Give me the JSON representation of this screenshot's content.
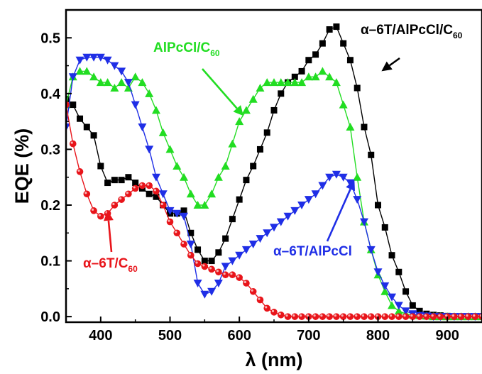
{
  "chart_data": {
    "type": "scatter",
    "xlabel": "λ (nm)",
    "ylabel": "EQE (%)",
    "xlim": [
      350,
      950
    ],
    "ylim": [
      -0.01,
      0.55
    ],
    "x_ticks": [
      400,
      500,
      600,
      700,
      800,
      900
    ],
    "y_ticks": [
      0.0,
      0.1,
      0.2,
      0.3,
      0.4,
      0.5
    ],
    "x_tick_labels": [
      "400",
      "500",
      "600",
      "700",
      "800",
      "900"
    ],
    "y_tick_labels": [
      "0.0",
      "0.1",
      "0.2",
      "0.3",
      "0.4",
      "0.5"
    ],
    "grid": false,
    "legend": "none",
    "series": [
      {
        "key": "s_a6t_alpccl_c60",
        "label": "α–6T/AlPcCl/C60",
        "color": "#000000",
        "marker": "square",
        "x": [
          350,
          360,
          370,
          380,
          390,
          400,
          410,
          420,
          430,
          440,
          450,
          460,
          470,
          480,
          490,
          500,
          510,
          520,
          530,
          540,
          550,
          560,
          570,
          580,
          590,
          600,
          610,
          620,
          630,
          640,
          650,
          660,
          670,
          680,
          690,
          700,
          710,
          720,
          730,
          740,
          750,
          760,
          770,
          780,
          790,
          800,
          810,
          820,
          830,
          840,
          850,
          860,
          870,
          880,
          890,
          900,
          910,
          920,
          930,
          940,
          950
        ],
        "y": [
          0.39,
          0.38,
          0.355,
          0.34,
          0.325,
          0.27,
          0.24,
          0.245,
          0.245,
          0.25,
          0.24,
          0.23,
          0.22,
          0.215,
          0.2,
          0.185,
          0.185,
          0.19,
          0.15,
          0.12,
          0.1,
          0.1,
          0.115,
          0.14,
          0.175,
          0.21,
          0.245,
          0.27,
          0.3,
          0.33,
          0.37,
          0.4,
          0.42,
          0.43,
          0.44,
          0.46,
          0.47,
          0.49,
          0.515,
          0.52,
          0.49,
          0.46,
          0.41,
          0.34,
          0.29,
          0.2,
          0.16,
          0.11,
          0.08,
          0.045,
          0.02,
          0.01,
          0.005,
          0.003,
          0.002,
          0.001,
          0.0,
          0.0,
          0.0,
          0.0,
          0.0
        ]
      },
      {
        "key": "s_alpccl_c60",
        "label": "AlPcCl/C60",
        "color": "#22dd22",
        "marker": "triangle-up",
        "x": [
          350,
          360,
          370,
          380,
          390,
          400,
          410,
          420,
          430,
          440,
          450,
          460,
          470,
          480,
          490,
          500,
          510,
          520,
          530,
          540,
          550,
          560,
          570,
          580,
          590,
          600,
          610,
          620,
          630,
          640,
          650,
          660,
          670,
          680,
          690,
          700,
          710,
          720,
          730,
          740,
          750,
          760,
          770,
          780,
          790,
          800,
          810,
          820,
          830,
          840,
          850,
          860,
          870,
          880,
          890,
          900,
          910,
          920,
          930,
          940,
          950
        ],
        "y": [
          0.38,
          0.43,
          0.44,
          0.44,
          0.43,
          0.42,
          0.42,
          0.41,
          0.42,
          0.41,
          0.43,
          0.42,
          0.4,
          0.37,
          0.33,
          0.3,
          0.27,
          0.25,
          0.22,
          0.2,
          0.2,
          0.22,
          0.25,
          0.27,
          0.31,
          0.35,
          0.37,
          0.39,
          0.41,
          0.42,
          0.42,
          0.42,
          0.42,
          0.42,
          0.42,
          0.43,
          0.43,
          0.44,
          0.43,
          0.42,
          0.38,
          0.34,
          0.25,
          0.17,
          0.12,
          0.075,
          0.045,
          0.02,
          0.01,
          0.005,
          0.003,
          0.002,
          0.001,
          0.0,
          0.0,
          0.0,
          0.0,
          0.0,
          0.0,
          0.0,
          0.0
        ]
      },
      {
        "key": "s_a6t_alpccl",
        "label": "α–6T/AlPcCl",
        "color": "#1f2ee6",
        "marker": "triangle-down",
        "x": [
          350,
          360,
          370,
          380,
          390,
          400,
          410,
          420,
          430,
          440,
          450,
          460,
          470,
          480,
          490,
          500,
          510,
          520,
          530,
          540,
          550,
          560,
          570,
          580,
          590,
          600,
          610,
          620,
          630,
          640,
          650,
          660,
          670,
          680,
          690,
          700,
          710,
          720,
          730,
          740,
          750,
          760,
          770,
          780,
          790,
          800,
          810,
          820,
          830,
          840,
          850,
          860,
          870,
          880,
          890,
          900,
          910,
          920,
          930,
          940,
          950
        ],
        "y": [
          0.34,
          0.43,
          0.46,
          0.465,
          0.465,
          0.465,
          0.46,
          0.45,
          0.44,
          0.42,
          0.38,
          0.34,
          0.3,
          0.25,
          0.22,
          0.19,
          0.185,
          0.18,
          0.13,
          0.06,
          0.04,
          0.045,
          0.06,
          0.09,
          0.1,
          0.11,
          0.12,
          0.13,
          0.14,
          0.15,
          0.16,
          0.17,
          0.18,
          0.19,
          0.2,
          0.21,
          0.22,
          0.235,
          0.25,
          0.255,
          0.25,
          0.24,
          0.21,
          0.17,
          0.12,
          0.08,
          0.055,
          0.035,
          0.02,
          0.01,
          0.005,
          0.002,
          0.001,
          0.0,
          0.0,
          0.0,
          0.0,
          0.0,
          0.0,
          0.0,
          0.0
        ]
      },
      {
        "key": "s_a6t_c60",
        "label": "α–6T/C60",
        "color": "#e8141a",
        "marker": "circle",
        "x": [
          350,
          360,
          370,
          380,
          390,
          400,
          410,
          420,
          430,
          440,
          450,
          460,
          470,
          480,
          490,
          500,
          510,
          520,
          530,
          540,
          550,
          560,
          570,
          580,
          590,
          600,
          610,
          620,
          630,
          640,
          650,
          660,
          670,
          680,
          690,
          700,
          710,
          720,
          730,
          740,
          750,
          760,
          770,
          780,
          790,
          800,
          810,
          820,
          830,
          840,
          850,
          860,
          870,
          880,
          890,
          900,
          910,
          920,
          930,
          940,
          950
        ],
        "y": [
          0.38,
          0.31,
          0.26,
          0.22,
          0.19,
          0.18,
          0.185,
          0.2,
          0.21,
          0.22,
          0.23,
          0.235,
          0.235,
          0.225,
          0.2,
          0.17,
          0.15,
          0.13,
          0.11,
          0.095,
          0.09,
          0.085,
          0.08,
          0.075,
          0.075,
          0.07,
          0.06,
          0.045,
          0.03,
          0.015,
          0.008,
          0.003,
          0.0,
          0.0,
          0.0,
          0.0,
          0.0,
          0.0,
          0.0,
          0.0,
          0.0,
          0.0,
          0.0,
          0.0,
          0.0,
          0.0,
          0.0,
          0.0,
          0.0,
          0.0,
          0.0,
          0.0,
          0.0,
          0.0,
          0.0,
          0.0,
          0.0,
          0.0,
          0.0,
          0.0,
          0.0
        ]
      }
    ],
    "annotations": [
      {
        "key": "ann_a6t_alpccl_c60",
        "series": "s_a6t_alpccl_c60",
        "text": "α–6T/AlPcCl/C",
        "sub": "60",
        "color": "#000000",
        "points_to": [
          805,
          0.44
        ]
      },
      {
        "key": "ann_alpccl_c60",
        "series": "s_alpccl_c60",
        "text": "AlPcCl/C",
        "sub": "60",
        "color": "#22dd22",
        "points_to": [
          606,
          0.36
        ]
      },
      {
        "key": "ann_a6t_alpccl",
        "series": "s_a6t_alpccl",
        "text": "α–6T/AlPcCl",
        "sub": "",
        "color": "#1f2ee6",
        "points_to": [
          766,
          0.245
        ]
      },
      {
        "key": "ann_a6t_c60",
        "series": "s_a6t_c60",
        "text": "α–6T/C",
        "sub": "60",
        "color": "#e8141a",
        "points_to": [
          410,
          0.19
        ]
      }
    ]
  }
}
